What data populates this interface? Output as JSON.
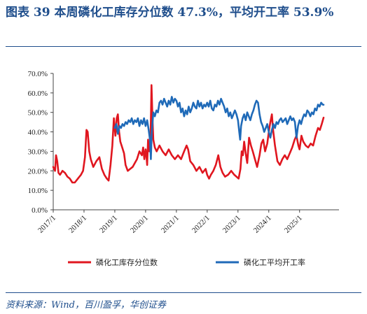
{
  "title": "图表 39   本周磷化工库存分位数 47.3%，平均开工率 53.9%",
  "source": "资料来源：Wind，百川盈孚，华创证券",
  "colors": {
    "accent": "#1f4e8c",
    "series_red": "#e0161f",
    "series_blue": "#1f6ab8"
  },
  "chart_data": {
    "type": "line",
    "title": "",
    "xlabel": "",
    "ylabel": "",
    "ylim": [
      0,
      70
    ],
    "yticks": [
      "0.0%",
      "10.0%",
      "20.0%",
      "30.0%",
      "40.0%",
      "50.0%",
      "60.0%",
      "70.0%"
    ],
    "xticks": [
      "2017/1",
      "2018/1",
      "2019/1",
      "2020/1",
      "2021/1",
      "2022/1",
      "2023/1",
      "2024/1",
      "2025/1"
    ],
    "xlim": [
      2017.0,
      2026.28
    ],
    "grid": false,
    "legend_position": "bottom",
    "series": [
      {
        "name": "磷化工库存分位数",
        "color": "#e0161f",
        "points": [
          [
            2017.0,
            22
          ],
          [
            2017.06,
            20
          ],
          [
            2017.09,
            28
          ],
          [
            2017.13,
            25
          ],
          [
            2017.17,
            19
          ],
          [
            2017.22,
            18
          ],
          [
            2017.3,
            20
          ],
          [
            2017.38,
            19
          ],
          [
            2017.46,
            17
          ],
          [
            2017.54,
            16
          ],
          [
            2017.62,
            14
          ],
          [
            2017.7,
            14
          ],
          [
            2017.8,
            16
          ],
          [
            2017.9,
            18
          ],
          [
            2017.97,
            20
          ],
          [
            2018.03,
            27
          ],
          [
            2018.08,
            41
          ],
          [
            2018.12,
            40
          ],
          [
            2018.17,
            30
          ],
          [
            2018.22,
            26
          ],
          [
            2018.3,
            22
          ],
          [
            2018.4,
            25
          ],
          [
            2018.5,
            27
          ],
          [
            2018.58,
            21
          ],
          [
            2018.66,
            18
          ],
          [
            2018.74,
            16
          ],
          [
            2018.8,
            15
          ],
          [
            2018.86,
            23
          ],
          [
            2018.92,
            33
          ],
          [
            2018.97,
            47
          ],
          [
            2019.02,
            38
          ],
          [
            2019.06,
            47
          ],
          [
            2019.1,
            49
          ],
          [
            2019.14,
            40
          ],
          [
            2019.18,
            35
          ],
          [
            2019.24,
            32
          ],
          [
            2019.3,
            29
          ],
          [
            2019.35,
            23
          ],
          [
            2019.42,
            20
          ],
          [
            2019.5,
            21
          ],
          [
            2019.58,
            22
          ],
          [
            2019.65,
            24
          ],
          [
            2019.72,
            26
          ],
          [
            2019.8,
            30
          ],
          [
            2019.88,
            28
          ],
          [
            2019.92,
            32
          ],
          [
            2019.96,
            26
          ],
          [
            2020.0,
            31
          ],
          [
            2020.02,
            29
          ],
          [
            2020.05,
            23
          ],
          [
            2020.08,
            36
          ],
          [
            2020.12,
            30
          ],
          [
            2020.16,
            35
          ],
          [
            2020.19,
            64
          ],
          [
            2020.22,
            48
          ],
          [
            2020.25,
            36
          ],
          [
            2020.3,
            32
          ],
          [
            2020.36,
            30
          ],
          [
            2020.45,
            33
          ],
          [
            2020.55,
            30
          ],
          [
            2020.65,
            28
          ],
          [
            2020.75,
            31
          ],
          [
            2020.85,
            28
          ],
          [
            2020.95,
            26
          ],
          [
            2021.05,
            28
          ],
          [
            2021.15,
            26
          ],
          [
            2021.25,
            30
          ],
          [
            2021.33,
            33
          ],
          [
            2021.38,
            31
          ],
          [
            2021.45,
            25
          ],
          [
            2021.55,
            23
          ],
          [
            2021.65,
            20
          ],
          [
            2021.75,
            22
          ],
          [
            2021.85,
            19
          ],
          [
            2021.95,
            21
          ],
          [
            2022.0,
            18
          ],
          [
            2022.06,
            16
          ],
          [
            2022.12,
            18
          ],
          [
            2022.2,
            20
          ],
          [
            2022.28,
            23
          ],
          [
            2022.36,
            28
          ],
          [
            2022.43,
            22
          ],
          [
            2022.5,
            19
          ],
          [
            2022.58,
            17
          ],
          [
            2022.68,
            18
          ],
          [
            2022.78,
            20
          ],
          [
            2022.88,
            18
          ],
          [
            2022.95,
            17
          ],
          [
            2023.02,
            16
          ],
          [
            2023.08,
            21
          ],
          [
            2023.12,
            30
          ],
          [
            2023.16,
            28
          ],
          [
            2023.2,
            35
          ],
          [
            2023.25,
            29
          ],
          [
            2023.3,
            24
          ],
          [
            2023.36,
            37
          ],
          [
            2023.42,
            33
          ],
          [
            2023.48,
            30
          ],
          [
            2023.55,
            26
          ],
          [
            2023.62,
            22
          ],
          [
            2023.7,
            28
          ],
          [
            2023.76,
            34
          ],
          [
            2023.82,
            36
          ],
          [
            2023.88,
            30
          ],
          [
            2023.95,
            34
          ],
          [
            2024.0,
            40
          ],
          [
            2024.05,
            45
          ],
          [
            2024.1,
            49
          ],
          [
            2024.14,
            41
          ],
          [
            2024.2,
            33
          ],
          [
            2024.28,
            25
          ],
          [
            2024.36,
            23
          ],
          [
            2024.44,
            26
          ],
          [
            2024.52,
            28
          ],
          [
            2024.6,
            26
          ],
          [
            2024.68,
            29
          ],
          [
            2024.76,
            32
          ],
          [
            2024.84,
            36
          ],
          [
            2024.9,
            38
          ],
          [
            2024.96,
            33
          ],
          [
            2025.0,
            31
          ],
          [
            2025.06,
            38
          ],
          [
            2025.12,
            35
          ],
          [
            2025.2,
            33
          ],
          [
            2025.28,
            32
          ],
          [
            2025.36,
            34
          ],
          [
            2025.44,
            33
          ],
          [
            2025.52,
            38
          ],
          [
            2025.6,
            42
          ],
          [
            2025.66,
            41
          ],
          [
            2025.72,
            44
          ],
          [
            2025.78,
            47.3
          ]
        ]
      },
      {
        "name": "磷化工平均开工率",
        "color": "#1f6ab8",
        "points": [
          [
            2019.0,
            42
          ],
          [
            2019.05,
            44
          ],
          [
            2019.1,
            39
          ],
          [
            2019.15,
            43
          ],
          [
            2019.2,
            42
          ],
          [
            2019.25,
            44
          ],
          [
            2019.3,
            43
          ],
          [
            2019.35,
            45
          ],
          [
            2019.4,
            44
          ],
          [
            2019.45,
            46
          ],
          [
            2019.5,
            45
          ],
          [
            2019.55,
            47
          ],
          [
            2019.6,
            44
          ],
          [
            2019.65,
            46
          ],
          [
            2019.7,
            45
          ],
          [
            2019.75,
            47
          ],
          [
            2019.8,
            43
          ],
          [
            2019.85,
            46
          ],
          [
            2019.9,
            44
          ],
          [
            2019.95,
            47
          ],
          [
            2020.0,
            43
          ],
          [
            2020.05,
            46
          ],
          [
            2020.1,
            41
          ],
          [
            2020.14,
            36
          ],
          [
            2020.17,
            26
          ],
          [
            2020.2,
            40
          ],
          [
            2020.25,
            50
          ],
          [
            2020.3,
            48
          ],
          [
            2020.35,
            51
          ],
          [
            2020.4,
            50
          ],
          [
            2020.45,
            55
          ],
          [
            2020.5,
            56
          ],
          [
            2020.55,
            54
          ],
          [
            2020.6,
            57
          ],
          [
            2020.65,
            55
          ],
          [
            2020.7,
            53
          ],
          [
            2020.75,
            56
          ],
          [
            2020.8,
            54
          ],
          [
            2020.85,
            58
          ],
          [
            2020.9,
            55
          ],
          [
            2020.95,
            57
          ],
          [
            2021.0,
            56
          ],
          [
            2021.05,
            53
          ],
          [
            2021.1,
            55
          ],
          [
            2021.15,
            50
          ],
          [
            2021.2,
            52
          ],
          [
            2021.25,
            48
          ],
          [
            2021.3,
            51
          ],
          [
            2021.35,
            49
          ],
          [
            2021.4,
            53
          ],
          [
            2021.45,
            50
          ],
          [
            2021.5,
            52
          ],
          [
            2021.55,
            55
          ],
          [
            2021.6,
            53
          ],
          [
            2021.65,
            52
          ],
          [
            2021.7,
            56
          ],
          [
            2021.75,
            53
          ],
          [
            2021.8,
            55
          ],
          [
            2021.85,
            52
          ],
          [
            2021.9,
            54
          ],
          [
            2021.95,
            53
          ],
          [
            2022.0,
            55
          ],
          [
            2022.05,
            53
          ],
          [
            2022.1,
            56
          ],
          [
            2022.15,
            52
          ],
          [
            2022.2,
            51
          ],
          [
            2022.25,
            54
          ],
          [
            2022.3,
            53
          ],
          [
            2022.35,
            56
          ],
          [
            2022.4,
            54
          ],
          [
            2022.45,
            57
          ],
          [
            2022.5,
            55
          ],
          [
            2022.55,
            53
          ],
          [
            2022.6,
            50
          ],
          [
            2022.65,
            52
          ],
          [
            2022.7,
            48
          ],
          [
            2022.75,
            50
          ],
          [
            2022.8,
            47
          ],
          [
            2022.85,
            49
          ],
          [
            2022.9,
            51
          ],
          [
            2022.95,
            49
          ],
          [
            2023.0,
            46
          ],
          [
            2023.04,
            40
          ],
          [
            2023.07,
            36
          ],
          [
            2023.1,
            43
          ],
          [
            2023.15,
            47
          ],
          [
            2023.2,
            49
          ],
          [
            2023.25,
            46
          ],
          [
            2023.3,
            50
          ],
          [
            2023.35,
            48
          ],
          [
            2023.4,
            46
          ],
          [
            2023.45,
            49
          ],
          [
            2023.5,
            51
          ],
          [
            2023.55,
            54
          ],
          [
            2023.6,
            56
          ],
          [
            2023.65,
            55
          ],
          [
            2023.7,
            49
          ],
          [
            2023.75,
            45
          ],
          [
            2023.8,
            43
          ],
          [
            2023.85,
            40
          ],
          [
            2023.9,
            42
          ],
          [
            2023.95,
            44
          ],
          [
            2024.0,
            40
          ],
          [
            2024.05,
            37
          ],
          [
            2024.1,
            41
          ],
          [
            2024.15,
            44
          ],
          [
            2024.2,
            42
          ],
          [
            2024.25,
            45
          ],
          [
            2024.3,
            44
          ],
          [
            2024.35,
            46
          ],
          [
            2024.4,
            47
          ],
          [
            2024.45,
            45
          ],
          [
            2024.5,
            46
          ],
          [
            2024.55,
            47
          ],
          [
            2024.6,
            44
          ],
          [
            2024.65,
            46
          ],
          [
            2024.7,
            48
          ],
          [
            2024.75,
            46
          ],
          [
            2024.8,
            47
          ],
          [
            2024.85,
            45
          ],
          [
            2024.9,
            37
          ],
          [
            2024.95,
            43
          ],
          [
            2025.0,
            46
          ],
          [
            2025.05,
            44
          ],
          [
            2025.1,
            47
          ],
          [
            2025.15,
            49
          ],
          [
            2025.2,
            48
          ],
          [
            2025.25,
            51
          ],
          [
            2025.3,
            50
          ],
          [
            2025.35,
            48
          ],
          [
            2025.4,
            50
          ],
          [
            2025.45,
            49
          ],
          [
            2025.5,
            52
          ],
          [
            2025.55,
            51
          ],
          [
            2025.6,
            54
          ],
          [
            2025.65,
            53
          ],
          [
            2025.7,
            55
          ],
          [
            2025.75,
            54
          ],
          [
            2025.78,
            53.9
          ]
        ]
      }
    ]
  }
}
